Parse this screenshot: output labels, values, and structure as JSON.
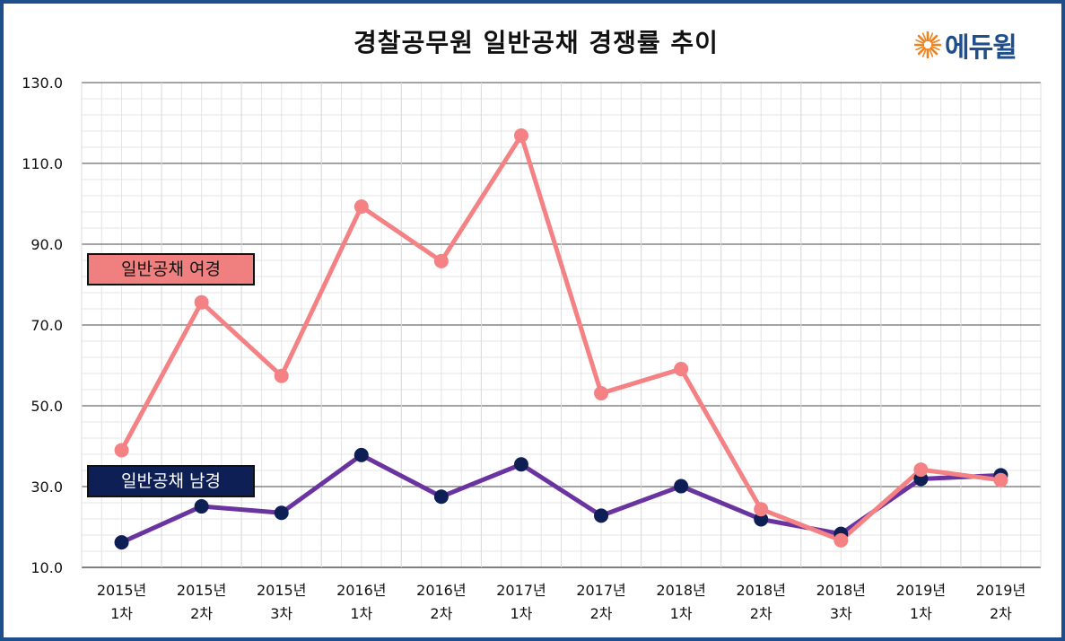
{
  "title": "경찰공무원 일반공채 경쟁률 추이",
  "logo": {
    "text": "에듀윌",
    "icon": "sun-burst-icon",
    "color": "#1f4e8c",
    "icon_color": "#f0821e"
  },
  "chart_data": {
    "type": "line",
    "title": "경찰공무원 일반공채 경쟁률 추이",
    "categories": [
      [
        "2015년",
        "1차"
      ],
      [
        "2015년",
        "2차"
      ],
      [
        "2015년",
        "3차"
      ],
      [
        "2016년",
        "1차"
      ],
      [
        "2016년",
        "2차"
      ],
      [
        "2017년",
        "1차"
      ],
      [
        "2017년",
        "2차"
      ],
      [
        "2018년",
        "1차"
      ],
      [
        "2018년",
        "2차"
      ],
      [
        "2018년",
        "3차"
      ],
      [
        "2019년",
        "1차"
      ],
      [
        "2019년",
        "2차"
      ]
    ],
    "series": [
      {
        "name": "일반공채 여경",
        "color": "#f48184",
        "marker_color": "#f48184",
        "values": [
          39.0,
          75.6,
          57.4,
          99.3,
          85.8,
          116.9,
          53.1,
          59.1,
          24.4,
          16.7,
          34.2,
          31.6
        ]
      },
      {
        "name": "일반공채 남경",
        "color": "#6a34a0",
        "marker_color": "#0d1f54",
        "values": [
          16.2,
          25.1,
          23.5,
          37.8,
          27.5,
          35.5,
          22.8,
          30.1,
          21.9,
          18.3,
          31.9,
          32.8
        ]
      }
    ],
    "y_ticks": [
      "130.0",
      "110.0",
      "90.0",
      "70.0",
      "50.0",
      "30.0",
      "10.0"
    ],
    "y_tick_values": [
      130,
      110,
      90,
      70,
      50,
      30,
      10
    ],
    "ylim": [
      10,
      130
    ],
    "grid": true,
    "legend": "inline-labels-left"
  }
}
